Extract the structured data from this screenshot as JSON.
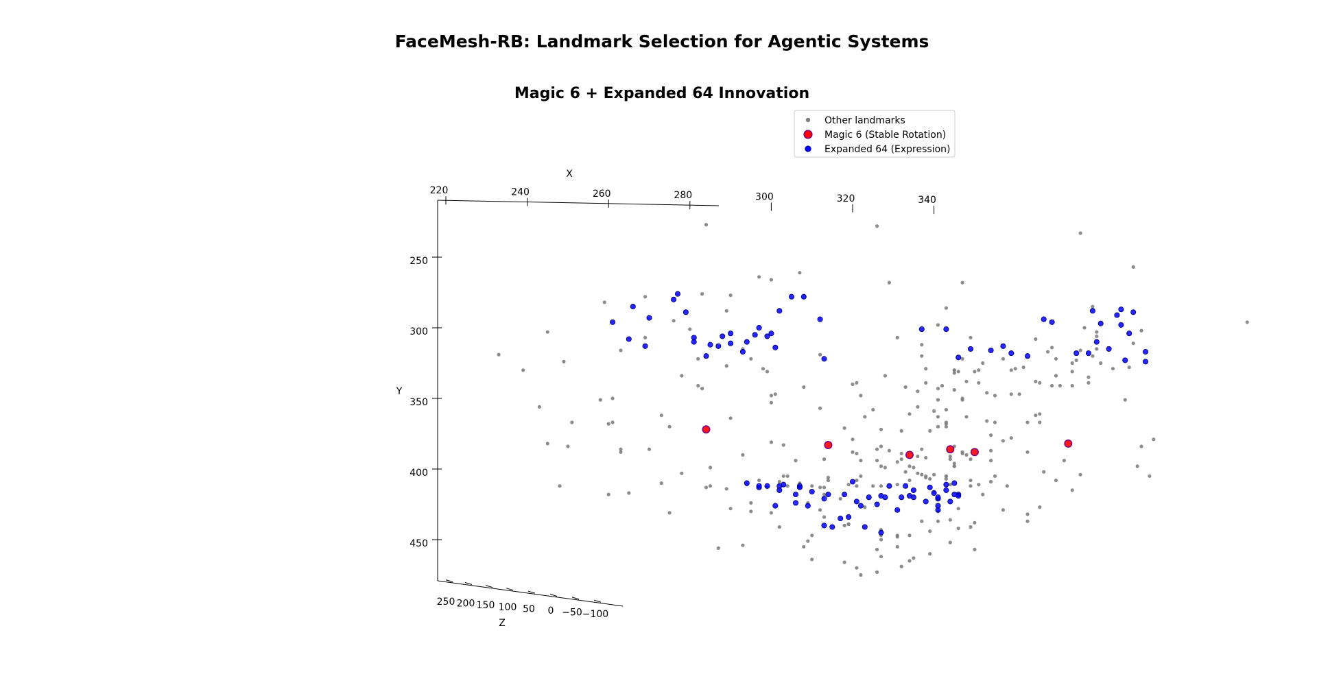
{
  "figure": {
    "suptitle": "FaceMesh-RB: Landmark Selection for Agentic Systems"
  },
  "chart_data": {
    "type": "scatter",
    "projection": "3d",
    "title": "Magic 6 + Expanded 64 Innovation",
    "xlabel": "X",
    "ylabel": "Y",
    "zlabel": "Z",
    "x_ticks": [
      220,
      240,
      260,
      280,
      300,
      320,
      340
    ],
    "y_ticks": [
      250,
      300,
      350,
      400,
      450
    ],
    "z_ticks": [
      250,
      200,
      150,
      100,
      50,
      0,
      -50,
      -100
    ],
    "z_tick_labels": [
      "250",
      "200",
      "150",
      "100",
      "50",
      "0",
      "−50",
      "−100"
    ],
    "legend": {
      "placement": "top-right"
    },
    "colors": {
      "other": "#808080",
      "magic": "#ff0000",
      "magic_edge": "#800080",
      "expanded": "#0000ff",
      "expanded_edge": "#000080"
    },
    "series": [
      {
        "name": "Other landmarks",
        "key": "other",
        "x": [
          284,
          326,
          376,
          389,
          347,
          379,
          365,
          341,
          417,
          371,
          300,
          289,
          278,
          283,
          350,
          269,
          263,
          249,
          261,
          297,
          245,
          251,
          243,
          263,
          293,
          295,
          282,
          299,
          298,
          282,
          273,
          301,
          342,
          260,
          284,
          303,
          323,
          340,
          309,
          317,
          295,
          313,
          319,
          314,
          334,
          344,
          349,
          358,
          351,
          331,
          325,
          313,
          312,
          321,
          304,
          294,
          285,
          289,
          321,
          302,
          327,
          339,
          338,
          337,
          343,
          332,
          335,
          326,
          320,
          327,
          318,
          343,
          312,
          308,
          321,
          338,
          345,
          325,
          337,
          327,
          347,
          340,
          336,
          354,
          349,
          347,
          354,
          343,
          361,
          363,
          353,
          360,
          365,
          366,
          378,
          387,
          366,
          363,
          372,
          370,
          376,
          374,
          393,
          390,
          394,
          391,
          367,
          366,
          357,
          341,
          363,
          363,
          346,
          300,
          265,
          273,
          285,
          303,
          290,
          300,
          322,
          321,
          312,
          280,
          276,
          289,
          290,
          300,
          307,
          329,
          343,
          331,
          337,
          345,
          333,
          293,
          313,
          327,
          299,
          307,
          322,
          314,
          336,
          310,
          313,
          343,
          312,
          318,
          344,
          319,
          331,
          327,
          308,
          331,
          339,
          334,
          318,
          326,
          327,
          332,
          321,
          326,
          339,
          322,
          327,
          335,
          346,
          327,
          331,
          337,
          350,
          334,
          344,
          349,
          350,
          341,
          357,
          359,
          365,
          374,
          389,
          377,
          380,
          376,
          391,
          370,
          370,
          379,
          388,
          374,
          380,
          378,
          384,
          345,
          351,
          352,
          351,
          348,
          366,
          359,
          359,
          369,
          375,
          380,
          381,
          369,
          374,
          368,
          357,
          362,
          349,
          337,
          347,
          345,
          347,
          332,
          341,
          355,
          339,
          353,
          348,
          341,
          343,
          343,
          334,
          336,
          347,
          341,
          336,
          355,
          341,
          338,
          346,
          345,
          338,
          328,
          323,
          300,
          270,
          278,
          275,
          263,
          233,
          239,
          260,
          283,
          250,
          259,
          269,
          245,
          258,
          261,
          297,
          248,
          275,
          287,
          310,
          309,
          293,
          302,
          319,
          310,
          290,
          295,
          304,
          338,
          333,
          306,
          352,
          349,
          344,
          320,
          354,
          320,
          328,
          331,
          322,
          334,
          345,
          354,
          344,
          348,
          355,
          343,
          340,
          329,
          326,
          332,
          345,
          345
        ],
        "y": [
          227,
          228,
          233,
          257,
          268,
          285,
          308,
          298,
          296,
          341,
          353,
          327,
          334,
          343,
          331,
          307,
          316,
          324,
          350,
          264,
          382,
          367,
          356,
          388,
          315,
          322,
          322,
          331,
          329,
          341,
          362,
          347,
          341,
          418,
          413,
          405,
          427,
          416,
          424,
          421,
          430,
          434,
          411,
          408,
          408,
          411,
          412,
          412,
          411,
          411,
          412,
          413,
          413,
          412,
          412,
          411,
          412,
          414,
          408,
          409,
          412,
          407,
          406,
          404,
          405,
          389,
          399,
          386,
          379,
          372,
          371,
          368,
          357,
          342,
          389,
          405,
          396,
          358,
          386,
          384,
          389,
          359,
          391,
          409,
          408,
          388,
          376,
          358,
          347,
          367,
          346,
          329,
          338,
          339,
          339,
          351,
          367,
          388,
          394,
          408,
          404,
          415,
          405,
          398,
          379,
          384,
          402,
          427,
          429,
          430,
          437,
          432,
          428,
          431,
          417,
          410,
          399,
          383,
          364,
          348,
          348,
          339,
          319,
          301,
          295,
          288,
          277,
          266,
          261,
          268,
          286,
          307,
          320,
          332,
          342,
          390,
          393,
          398,
          413,
          410,
          405,
          406,
          403,
          412,
          418,
          407,
          429,
          440,
          436,
          439,
          447,
          450,
          455,
          455,
          444,
          465,
          466,
          457,
          462,
          469,
          470,
          473,
          460,
          475,
          447,
          463,
          442,
          443,
          448,
          437,
          457,
          447,
          452,
          441,
          438,
          437,
          380,
          378,
          362,
          341,
          311,
          300,
          306,
          316,
          302,
          334,
          322,
          320,
          328,
          325,
          303,
          335,
          329,
          330,
          330,
          325,
          339,
          338,
          361,
          347,
          330,
          341,
          323,
          315,
          325,
          314,
          331,
          317,
          322,
          328,
          307,
          312,
          322,
          344,
          350,
          373,
          370,
          367,
          373,
          366,
          363,
          363,
          367,
          370,
          361,
          356,
          351,
          351,
          345,
          348,
          343,
          339,
          331,
          330,
          329,
          334,
          363,
          381,
          386,
          403,
          370,
          386,
          319,
          330,
          368,
          276,
          384,
          282,
          278,
          303,
          351,
          367,
          408,
          412,
          431,
          456,
          447,
          451,
          454,
          441,
          439,
          464,
          428,
          424,
          405,
          392,
          402,
          394,
          418,
          393,
          391,
          340,
          387,
          388,
          399,
          395,
          394,
          398,
          384,
          394,
          393,
          390,
          405,
          405,
          404,
          387,
          394,
          393,
          398,
          398
        ],
        "z": [
          0,
          0,
          0,
          0,
          0,
          0,
          0,
          0,
          0,
          0,
          0,
          0,
          0,
          0,
          0,
          0,
          0,
          0,
          0,
          0,
          0,
          0,
          0,
          0,
          0,
          0,
          0,
          0,
          0,
          0,
          0,
          0,
          0,
          0,
          0,
          0,
          0,
          0,
          0,
          0,
          0,
          0,
          0,
          0,
          0,
          0,
          0,
          0,
          0,
          0,
          0,
          0,
          0,
          0,
          0,
          0,
          0,
          0,
          0,
          0,
          0,
          0,
          0,
          0,
          0,
          0,
          0,
          0,
          0,
          0,
          0,
          0,
          0,
          0,
          0,
          0,
          0,
          0,
          0,
          0,
          0,
          0,
          0,
          0,
          0,
          0,
          0,
          0,
          0,
          0,
          0,
          0,
          0,
          0,
          0,
          0,
          0,
          0,
          0,
          0,
          0,
          0,
          0,
          0,
          0,
          0,
          0,
          0,
          0,
          0,
          0,
          0,
          0,
          0,
          0,
          0,
          0,
          0,
          0,
          0,
          0,
          0,
          0,
          0,
          0,
          0,
          0,
          0,
          0,
          0,
          0,
          0,
          0,
          0,
          0,
          0,
          0,
          0,
          0,
          0,
          0,
          0,
          0,
          0,
          0,
          0,
          0,
          0,
          0,
          0,
          0,
          0,
          0,
          0,
          0,
          0,
          0,
          0,
          0,
          0,
          0,
          0,
          0,
          0,
          0,
          0,
          0,
          0,
          0,
          0,
          0,
          0,
          0,
          0,
          0,
          0,
          0,
          0,
          0,
          0,
          0,
          0,
          0,
          0,
          0,
          0,
          0,
          0,
          0,
          0,
          0,
          0,
          0,
          0,
          0,
          0,
          0,
          0,
          0,
          0,
          0,
          0,
          0,
          0,
          0,
          0,
          0,
          0,
          0,
          0,
          0,
          0,
          0,
          0,
          0,
          0,
          0,
          0,
          0,
          0,
          0,
          0,
          0,
          0,
          0,
          0,
          0,
          0,
          0,
          0,
          0,
          0,
          0,
          0,
          0,
          0,
          0,
          0,
          0,
          0,
          0,
          0,
          0,
          0,
          0,
          0,
          0,
          0,
          0,
          0,
          0,
          0,
          0,
          0,
          0,
          0,
          0,
          0,
          0,
          0,
          0,
          0,
          0,
          0,
          0,
          0,
          0,
          0,
          0,
          0,
          0,
          0,
          0,
          0,
          0,
          0,
          0,
          0,
          0,
          0,
          0,
          0,
          0,
          0,
          0,
          0,
          0,
          0,
          0,
          0,
          0,
          0,
          0,
          0,
          0,
          0,
          0,
          0,
          0,
          0
        ]
      },
      {
        "name": "Magic 6 (Stable Rotation)",
        "key": "magic",
        "x": [
          284,
          314,
          334,
          344,
          350,
          373
        ],
        "y": [
          372,
          383,
          390,
          386,
          388,
          382
        ],
        "z": [
          0,
          0,
          0,
          0,
          0,
          0
        ]
      },
      {
        "name": "Expanded 64 (Expression)",
        "key": "expanded",
        "x": [
          277,
          276,
          279,
          266,
          270,
          265,
          261,
          269,
          285,
          290,
          290,
          294,
          284,
          301,
          312,
          300,
          308,
          302,
          305,
          297,
          313,
          281,
          288,
          296,
          299,
          293,
          287,
          281,
          346,
          337,
          354,
          343,
          359,
          369,
          363,
          378,
          380,
          383,
          388,
          381,
          392,
          386,
          389,
          392,
          349,
          357,
          379,
          387,
          375,
          385,
          386,
          367,
          294,
          297,
          299,
          302,
          307,
          314,
          329,
          335,
          346,
          320,
          324,
          327,
          333,
          334,
          318,
          313,
          321,
          328,
          341,
          341,
          344,
          341,
          345,
          335,
          340,
          343,
          345,
          346,
          343,
          338,
          341,
          339,
          332,
          326,
          306,
          319,
          313,
          322,
          317,
          315,
          301,
          303,
          297,
          306,
          331,
          323,
          327,
          309,
          307,
          310,
          302
        ],
        "y": [
          276,
          280,
          289,
          285,
          293,
          308,
          296,
          313,
          312,
          311,
          304,
          310,
          320,
          314,
          294,
          304,
          278,
          288,
          278,
          300,
          322,
          310,
          306,
          305,
          306,
          317,
          313,
          307,
          321,
          301,
          316,
          301,
          318,
          296,
          320,
          318,
          310,
          315,
          304,
          297,
          324,
          287,
          289,
          317,
          315,
          313,
          288,
          323,
          318,
          291,
          298,
          294,
          410,
          413,
          412,
          412,
          412,
          418,
          412,
          415,
          418,
          409,
          420,
          419,
          412,
          419,
          418,
          421,
          423,
          420,
          426,
          421,
          423,
          420,
          410,
          420,
          417,
          415,
          418,
          419,
          411,
          423,
          429,
          413,
          420,
          425,
          424,
          434,
          440,
          426,
          435,
          441,
          426,
          411,
          412,
          418,
          429,
          441,
          445,
          426,
          413,
          416,
          415
        ],
        "z": [
          0,
          0,
          0,
          0,
          0,
          0,
          0,
          0,
          0,
          0,
          0,
          0,
          0,
          0,
          0,
          0,
          0,
          0,
          0,
          0,
          0,
          0,
          0,
          0,
          0,
          0,
          0,
          0,
          0,
          0,
          0,
          0,
          0,
          0,
          0,
          0,
          0,
          0,
          0,
          0,
          0,
          0,
          0,
          0,
          0,
          0,
          0,
          0,
          0,
          0,
          0,
          0,
          0,
          0,
          0,
          0,
          0,
          0,
          0,
          0,
          0,
          0,
          0,
          0,
          0,
          0,
          0,
          0,
          0,
          0,
          0,
          0,
          0,
          0,
          0,
          0,
          0,
          0,
          0,
          0,
          0,
          0,
          0,
          0,
          0,
          0,
          0,
          0,
          0,
          0,
          0,
          0,
          0,
          0,
          0,
          0,
          0,
          0,
          0,
          0,
          0,
          0,
          0,
          0,
          0,
          0,
          0,
          0,
          0,
          0
        ]
      }
    ]
  }
}
